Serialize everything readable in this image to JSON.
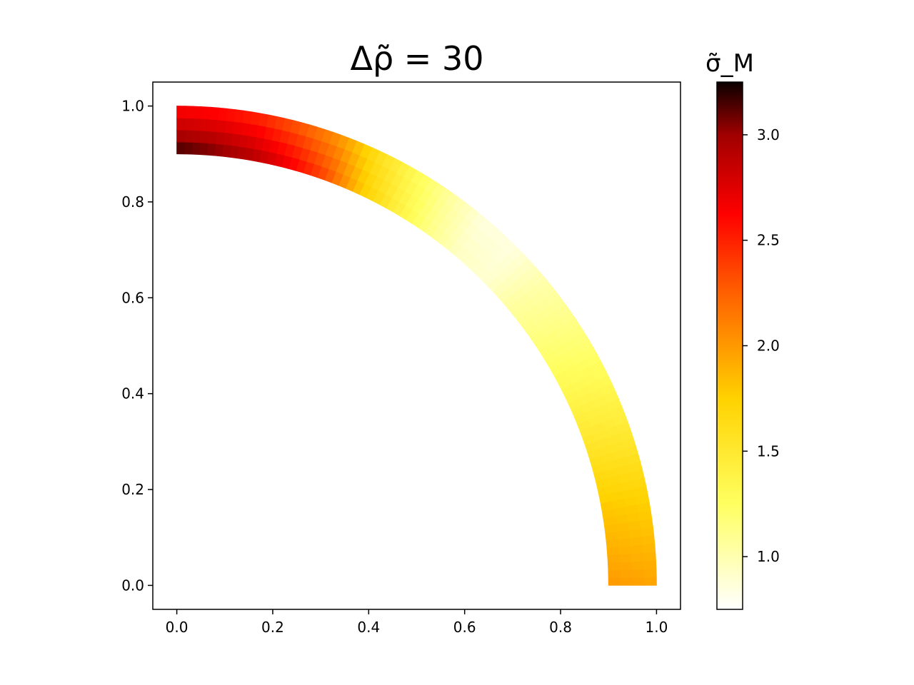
{
  "chart_data": {
    "type": "heatmap",
    "title": "Δρ̃ = 30",
    "xlabel": "",
    "ylabel": "",
    "xlim": [
      -0.05,
      1.05
    ],
    "ylim": [
      -0.05,
      1.05
    ],
    "xticks": [
      "0.0",
      "0.2",
      "0.4",
      "0.6",
      "0.8",
      "1.0"
    ],
    "yticks": [
      "0.0",
      "0.2",
      "0.4",
      "0.6",
      "0.8",
      "1.0"
    ],
    "geometry": {
      "shape": "quarter-annulus",
      "inner_radius": 0.9,
      "outer_radius": 1.0,
      "theta_range_deg": [
        0,
        90
      ]
    },
    "colormap": "hot_r",
    "colorbar": {
      "label": "σ̃_M",
      "range": [
        0.75,
        3.25
      ],
      "ticks": [
        "1.0",
        "1.5",
        "2.0",
        "2.5",
        "3.0"
      ]
    },
    "field_profile": {
      "theta_deg": [
        0,
        10,
        20,
        30,
        40,
        45,
        50,
        55,
        60,
        65,
        70,
        75,
        80,
        85,
        90
      ],
      "outer": [
        1.95,
        1.75,
        1.45,
        1.2,
        1.0,
        0.85,
        0.85,
        1.05,
        1.3,
        1.6,
        2.0,
        2.25,
        2.45,
        2.55,
        2.6
      ],
      "inner": [
        2.0,
        1.8,
        1.5,
        1.25,
        1.05,
        0.9,
        0.95,
        1.15,
        1.45,
        1.8,
        2.35,
        2.7,
        2.95,
        3.1,
        3.2
      ]
    }
  }
}
